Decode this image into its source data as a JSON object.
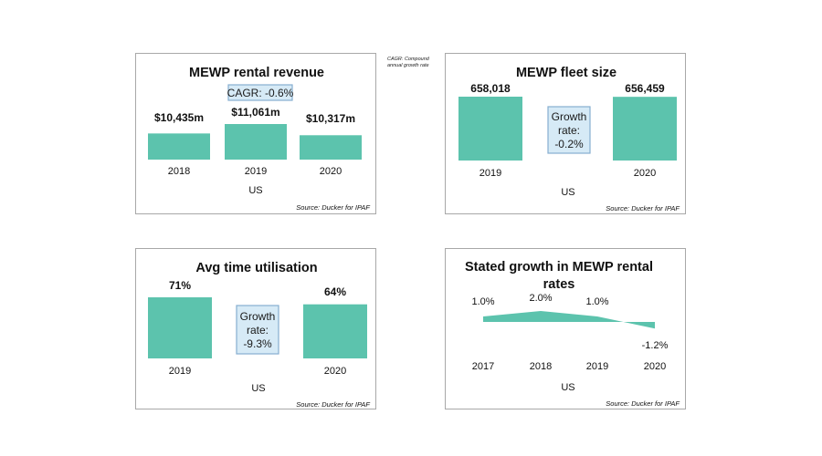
{
  "note": {
    "line1": "CAGR: Compound",
    "line2": "annual growth rate"
  },
  "chart_data": [
    {
      "type": "bar",
      "title": "MEWP rental revenue",
      "categories": [
        "2018",
        "2019",
        "2020"
      ],
      "values": [
        10435,
        11061,
        10317
      ],
      "value_labels": [
        "$10,435m",
        "$11,061m",
        "$10,317m"
      ],
      "xlabel": "US",
      "callout": {
        "line1": "CAGR: -0.6%"
      },
      "source": "Source: Ducker for IPAF",
      "color": "#5cc3ad"
    },
    {
      "type": "bar",
      "title": "MEWP fleet size",
      "categories": [
        "2019",
        "2020"
      ],
      "values": [
        658018,
        656459
      ],
      "value_labels": [
        "658,018",
        "656,459"
      ],
      "xlabel": "US",
      "callout": {
        "line1": "Growth",
        "line2": "rate:",
        "line3": "-0.2%"
      },
      "source": "Source: Ducker for IPAF",
      "color": "#5cc3ad"
    },
    {
      "type": "bar",
      "title": "Avg time utilisation",
      "categories": [
        "2019",
        "2020"
      ],
      "values": [
        71,
        64
      ],
      "value_labels": [
        "71%",
        "64%"
      ],
      "xlabel": "US",
      "callout": {
        "line1": "Growth",
        "line2": "rate:",
        "line3": "-9.3%"
      },
      "source": "Source: Ducker for IPAF",
      "color": "#5cc3ad"
    },
    {
      "type": "area",
      "title_line1": "Stated growth in MEWP rental",
      "title_line2": "rates",
      "categories": [
        "2017",
        "2018",
        "2019",
        "2020"
      ],
      "values": [
        1.0,
        2.0,
        1.0,
        -1.2
      ],
      "value_labels": [
        "1.0%",
        "2.0%",
        "1.0%",
        "-1.2%"
      ],
      "xlabel": "US",
      "source": "Source: Ducker for IPAF",
      "color": "#5cc3ad"
    }
  ]
}
